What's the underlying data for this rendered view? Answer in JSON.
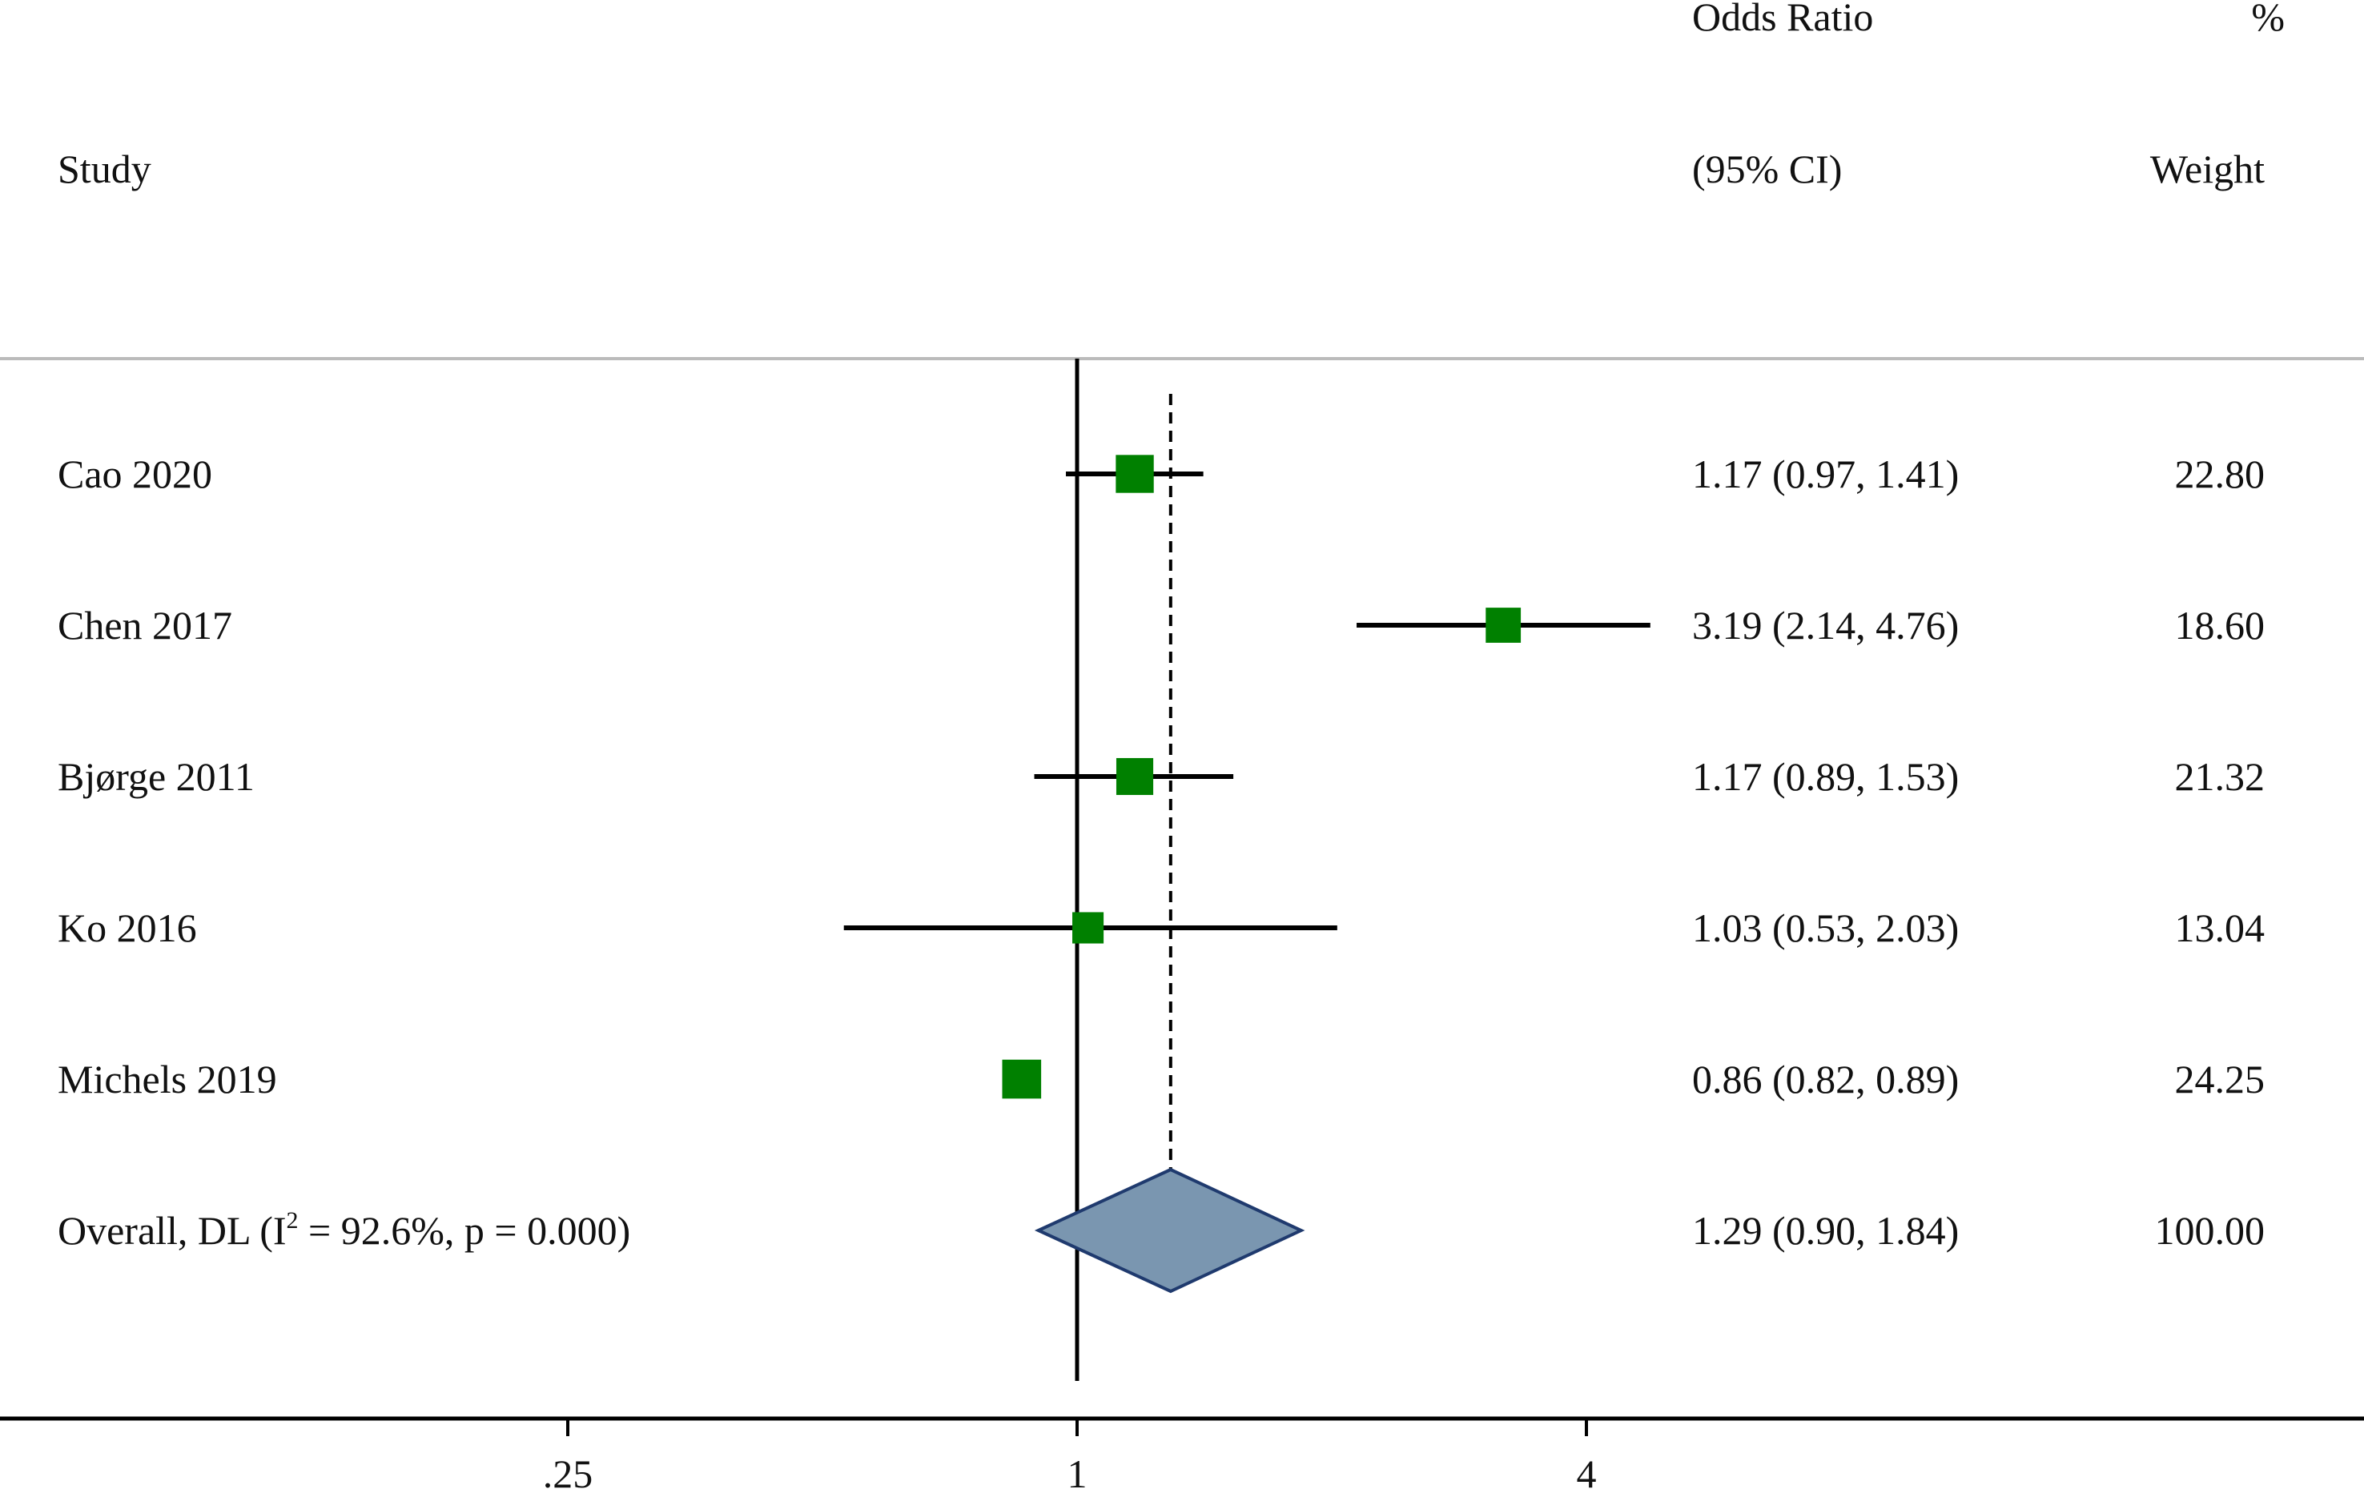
{
  "header": {
    "study_label": "Study",
    "or_label_line1": "Odds Ratio",
    "or_label_line2": "(95% CI)",
    "weight_label_line1": "%",
    "weight_label_line2": "Weight"
  },
  "chart_data": {
    "type": "forest",
    "scale": "log",
    "reference_line": 1,
    "pooled_line": 1.29,
    "xticks": [
      {
        "value": 0.25,
        "label": ".25"
      },
      {
        "value": 1,
        "label": "1"
      },
      {
        "value": 4,
        "label": "4"
      }
    ],
    "studies": [
      {
        "name": "Cao 2020",
        "or": 1.17,
        "lo": 0.97,
        "hi": 1.41,
        "ci_text": "1.17 (0.97, 1.41)",
        "weight": 22.8,
        "weight_text": "22.80"
      },
      {
        "name": "Chen 2017",
        "or": 3.19,
        "lo": 2.14,
        "hi": 4.76,
        "ci_text": "3.19 (2.14, 4.76)",
        "weight": 18.6,
        "weight_text": "18.60"
      },
      {
        "name": "Bjørge 2011",
        "or": 1.17,
        "lo": 0.89,
        "hi": 1.53,
        "ci_text": "1.17 (0.89, 1.53)",
        "weight": 21.32,
        "weight_text": "21.32"
      },
      {
        "name": "Ko 2016",
        "or": 1.03,
        "lo": 0.53,
        "hi": 2.03,
        "ci_text": "1.03 (0.53, 2.03)",
        "weight": 13.04,
        "weight_text": "13.04"
      },
      {
        "name": "Michels 2019",
        "or": 0.86,
        "lo": 0.82,
        "hi": 0.89,
        "ci_text": "0.86 (0.82, 0.89)",
        "weight": 24.25,
        "weight_text": "24.25"
      }
    ],
    "overall": {
      "label_prefix": "Overall, DL (I",
      "label_sup": "2",
      "label_suffix": " = 92.6%, p = 0.000)",
      "or": 1.29,
      "lo": 0.9,
      "hi": 1.84,
      "ci_text": "1.29 (0.90, 1.84)",
      "weight_text": "100.00"
    },
    "colors": {
      "marker": "#008000",
      "diamond_fill": "#7a96b0",
      "diamond_stroke": "#1f3a6e",
      "line": "#000000",
      "separator": "#bbbbbb"
    }
  }
}
